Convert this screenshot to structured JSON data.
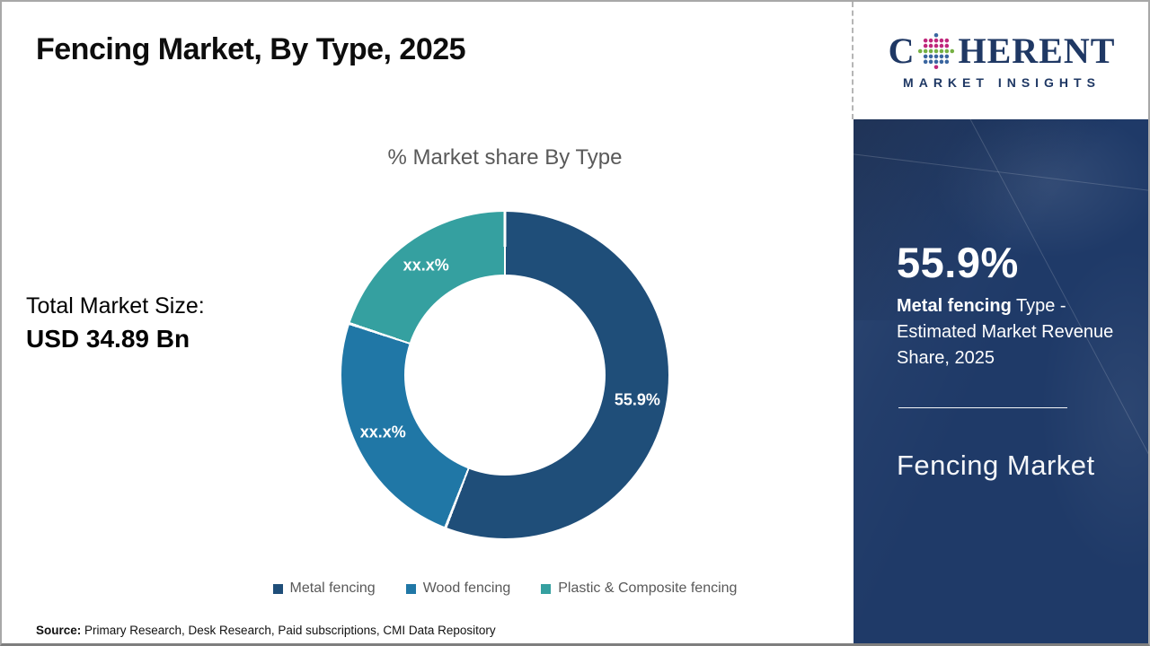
{
  "header": {
    "title": "Fencing Market, By Type, 2025"
  },
  "logo": {
    "part1": "C",
    "part2": "HERENT",
    "subtitle": "MARKET INSIGHTS",
    "text_color": "#1f3864",
    "globe_icon_colors": [
      "#2aa7a0",
      "#3a66a0",
      "#76b043",
      "#c0287c"
    ]
  },
  "chart_data": {
    "type": "pie",
    "donut": true,
    "title": "% Market share By Type",
    "categories": [
      "Metal fencing",
      "Wood fencing",
      "Plastic & Composite fencing"
    ],
    "values": [
      55.9,
      24.2,
      19.9
    ],
    "display_labels": [
      "55.9%",
      "xx.x%",
      "xx.x%"
    ],
    "colors": [
      "#1f4e79",
      "#2077a6",
      "#35a0a0"
    ],
    "legend_position": "bottom",
    "start_angle_deg": 0,
    "slice_gap_white": true
  },
  "left_panel": {
    "total_label": "Total Market Size:",
    "total_value": "USD 34.89 Bn"
  },
  "sidebar": {
    "bg_color": "#1f3a68",
    "stat_value": "55.9%",
    "stat_bold": "Metal fencing",
    "stat_rest": " Type - Estimated Market Revenue Share, 2025",
    "product": "Fencing Market"
  },
  "source": {
    "label": "Source:",
    "text": " Primary Research, Desk Research, Paid subscriptions, CMI Data Repository"
  }
}
